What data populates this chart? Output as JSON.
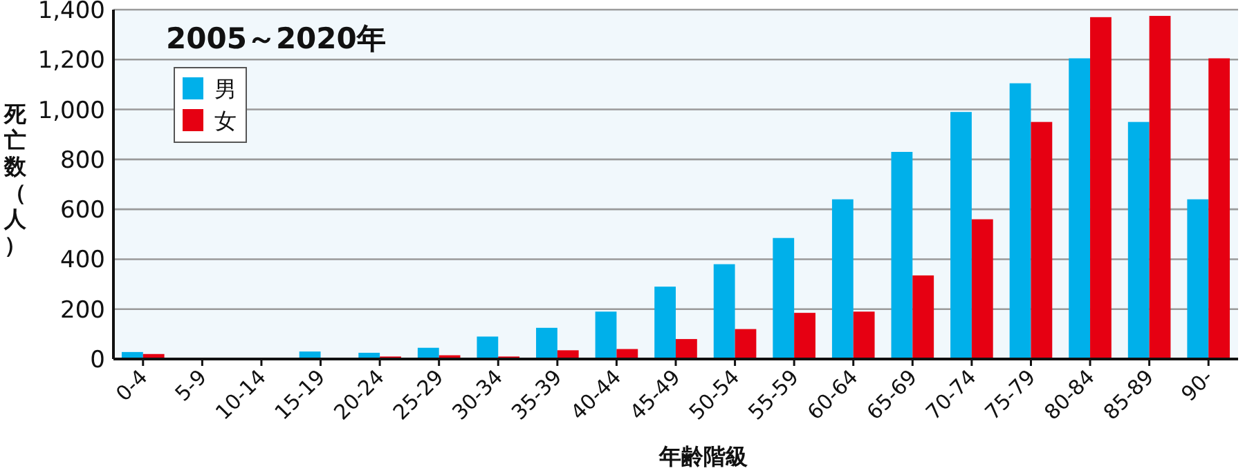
{
  "chart_data": {
    "type": "bar",
    "title": "2005～2020年",
    "xlabel": "年齢階級",
    "ylabel": "死亡数（人）",
    "categories": [
      "0-4",
      "5-9",
      "10-14",
      "15-19",
      "20-24",
      "25-29",
      "30-34",
      "35-39",
      "40-44",
      "45-49",
      "50-54",
      "55-59",
      "60-64",
      "65-69",
      "70-74",
      "75-79",
      "80-84",
      "85-89",
      "90-"
    ],
    "series": [
      {
        "name": "男",
        "color": "#00b0ea",
        "values": [
          28,
          0,
          0,
          30,
          25,
          45,
          90,
          125,
          190,
          290,
          380,
          485,
          640,
          830,
          990,
          1105,
          1205,
          950,
          640
        ]
      },
      {
        "name": "女",
        "color": "#e60012",
        "values": [
          20,
          0,
          0,
          0,
          10,
          15,
          10,
          35,
          40,
          80,
          120,
          185,
          190,
          335,
          560,
          950,
          1370,
          1375,
          1205
        ]
      }
    ],
    "ylim": [
      0,
      1400
    ],
    "yticks": [
      0,
      200,
      400,
      600,
      800,
      {
        "value": 1000,
        "label": "1,000"
      },
      {
        "value": 1200,
        "label": "1,200"
      },
      {
        "value": 1400,
        "label": "1,400"
      }
    ],
    "grid": "y",
    "legend": "top left"
  }
}
